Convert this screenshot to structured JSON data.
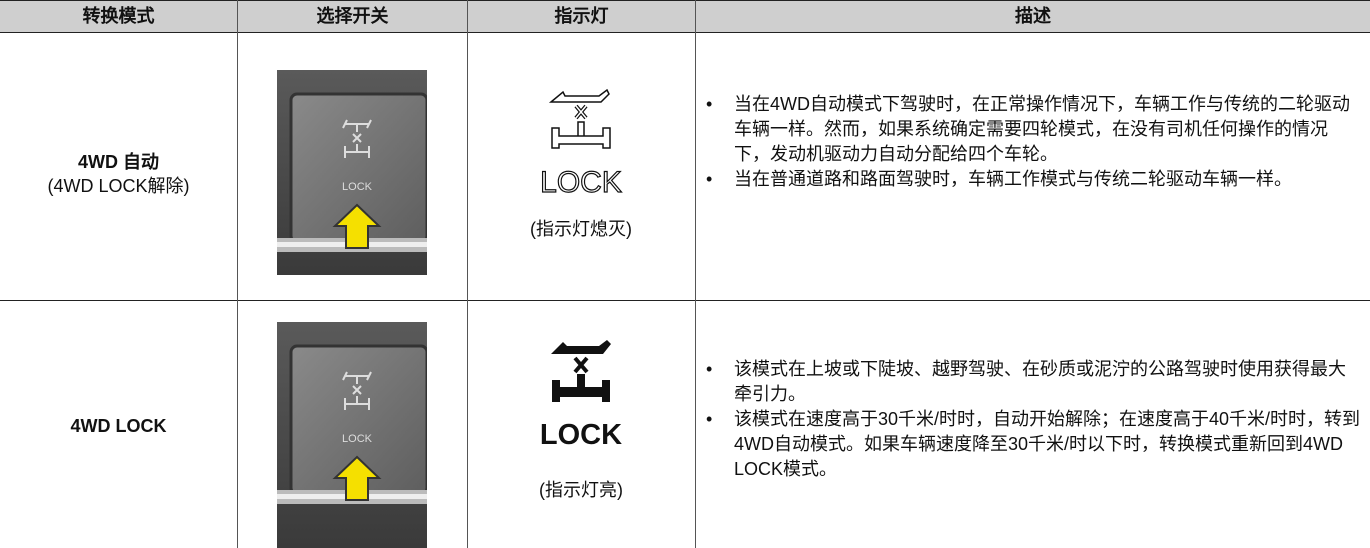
{
  "header": [
    "转换模式",
    "选择开关",
    "指示灯",
    "描述"
  ],
  "rows": [
    {
      "mode": [
        "4WD 自动",
        "(4WD LOCK解除)"
      ],
      "switch_label": "LOCK",
      "indicator_label": "LOCK",
      "indicator_note": "(指示灯熄灭)",
      "description": [
        "当在4WD自动模式下驾驶时，在正常操作情况下，车辆工作与传统的二轮驱动车辆一样。然而，如果系统确定需要四轮模式，在没有司机任何操作的情况下，发动机驱动力自动分配给四个车轮。",
        "当在普通道路和路面驾驶时，车辆工作模式与传统二轮驱动车辆一样。"
      ]
    },
    {
      "mode": [
        "4WD LOCK"
      ],
      "switch_label": "LOCK",
      "indicator_label": "LOCK",
      "indicator_note": "(指示灯亮)",
      "description": [
        "该模式在上坡或下陡坡、越野驾驶、在砂质或泥泞的公路驾驶时使用获得最大牵引力。",
        "该模式在速度高于30千米/时时，自动开始解除；在速度高于40千米/时时，转到4WD自动模式。如果车辆速度降至30千米/时以下时，转换模式重新回到4WD LOCK模式。"
      ]
    }
  ]
}
